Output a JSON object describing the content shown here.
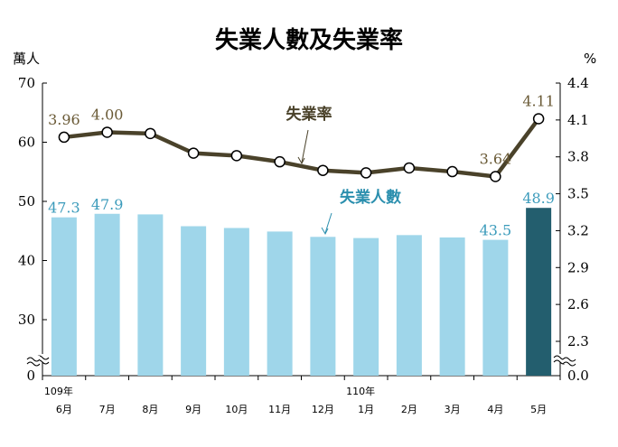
{
  "chart_data": {
    "type": "bar+line",
    "title": "失業人數及失業率",
    "left_axis": {
      "unit": "萬人",
      "ylim": [
        0,
        70
      ],
      "ticks": [
        "0",
        "30",
        "40",
        "50",
        "60",
        "70"
      ],
      "break": true
    },
    "right_axis": {
      "unit": "%",
      "ylim": [
        0,
        4.4
      ],
      "ticks": [
        "0.0",
        "2.3",
        "2.6",
        "2.9",
        "3.2",
        "3.5",
        "3.8",
        "4.1",
        "4.4"
      ],
      "break": true
    },
    "year_labels": [
      {
        "index": 0,
        "text": "109年"
      },
      {
        "index": 7,
        "text": "110年"
      }
    ],
    "categories": [
      "6月",
      "7月",
      "8月",
      "9月",
      "10月",
      "11月",
      "12月",
      "1月",
      "2月",
      "3月",
      "4月",
      "5月"
    ],
    "series": [
      {
        "name": "失業人數",
        "type": "bar",
        "axis": "left",
        "values": [
          47.3,
          47.9,
          47.8,
          45.8,
          45.5,
          44.9,
          44.0,
          43.8,
          44.3,
          43.9,
          43.5,
          48.9
        ],
        "labels": [
          "47.3",
          "47.9",
          "",
          "",
          "",
          "",
          "",
          "",
          "",
          "",
          "43.5",
          "48.9"
        ],
        "color": "#9fd6ea",
        "highlight_color": "#235e6e"
      },
      {
        "name": "失業率",
        "type": "line",
        "axis": "right",
        "values": [
          3.96,
          4.0,
          3.99,
          3.83,
          3.81,
          3.76,
          3.69,
          3.67,
          3.71,
          3.68,
          3.64,
          4.11
        ],
        "labels": [
          "3.96",
          "4.00",
          "",
          "",
          "",
          "",
          "",
          "",
          "",
          "",
          "3.64",
          "4.11"
        ],
        "color": "#4a422a"
      }
    ],
    "annotations": {
      "line": "失業率",
      "bar": "失業人數"
    }
  }
}
